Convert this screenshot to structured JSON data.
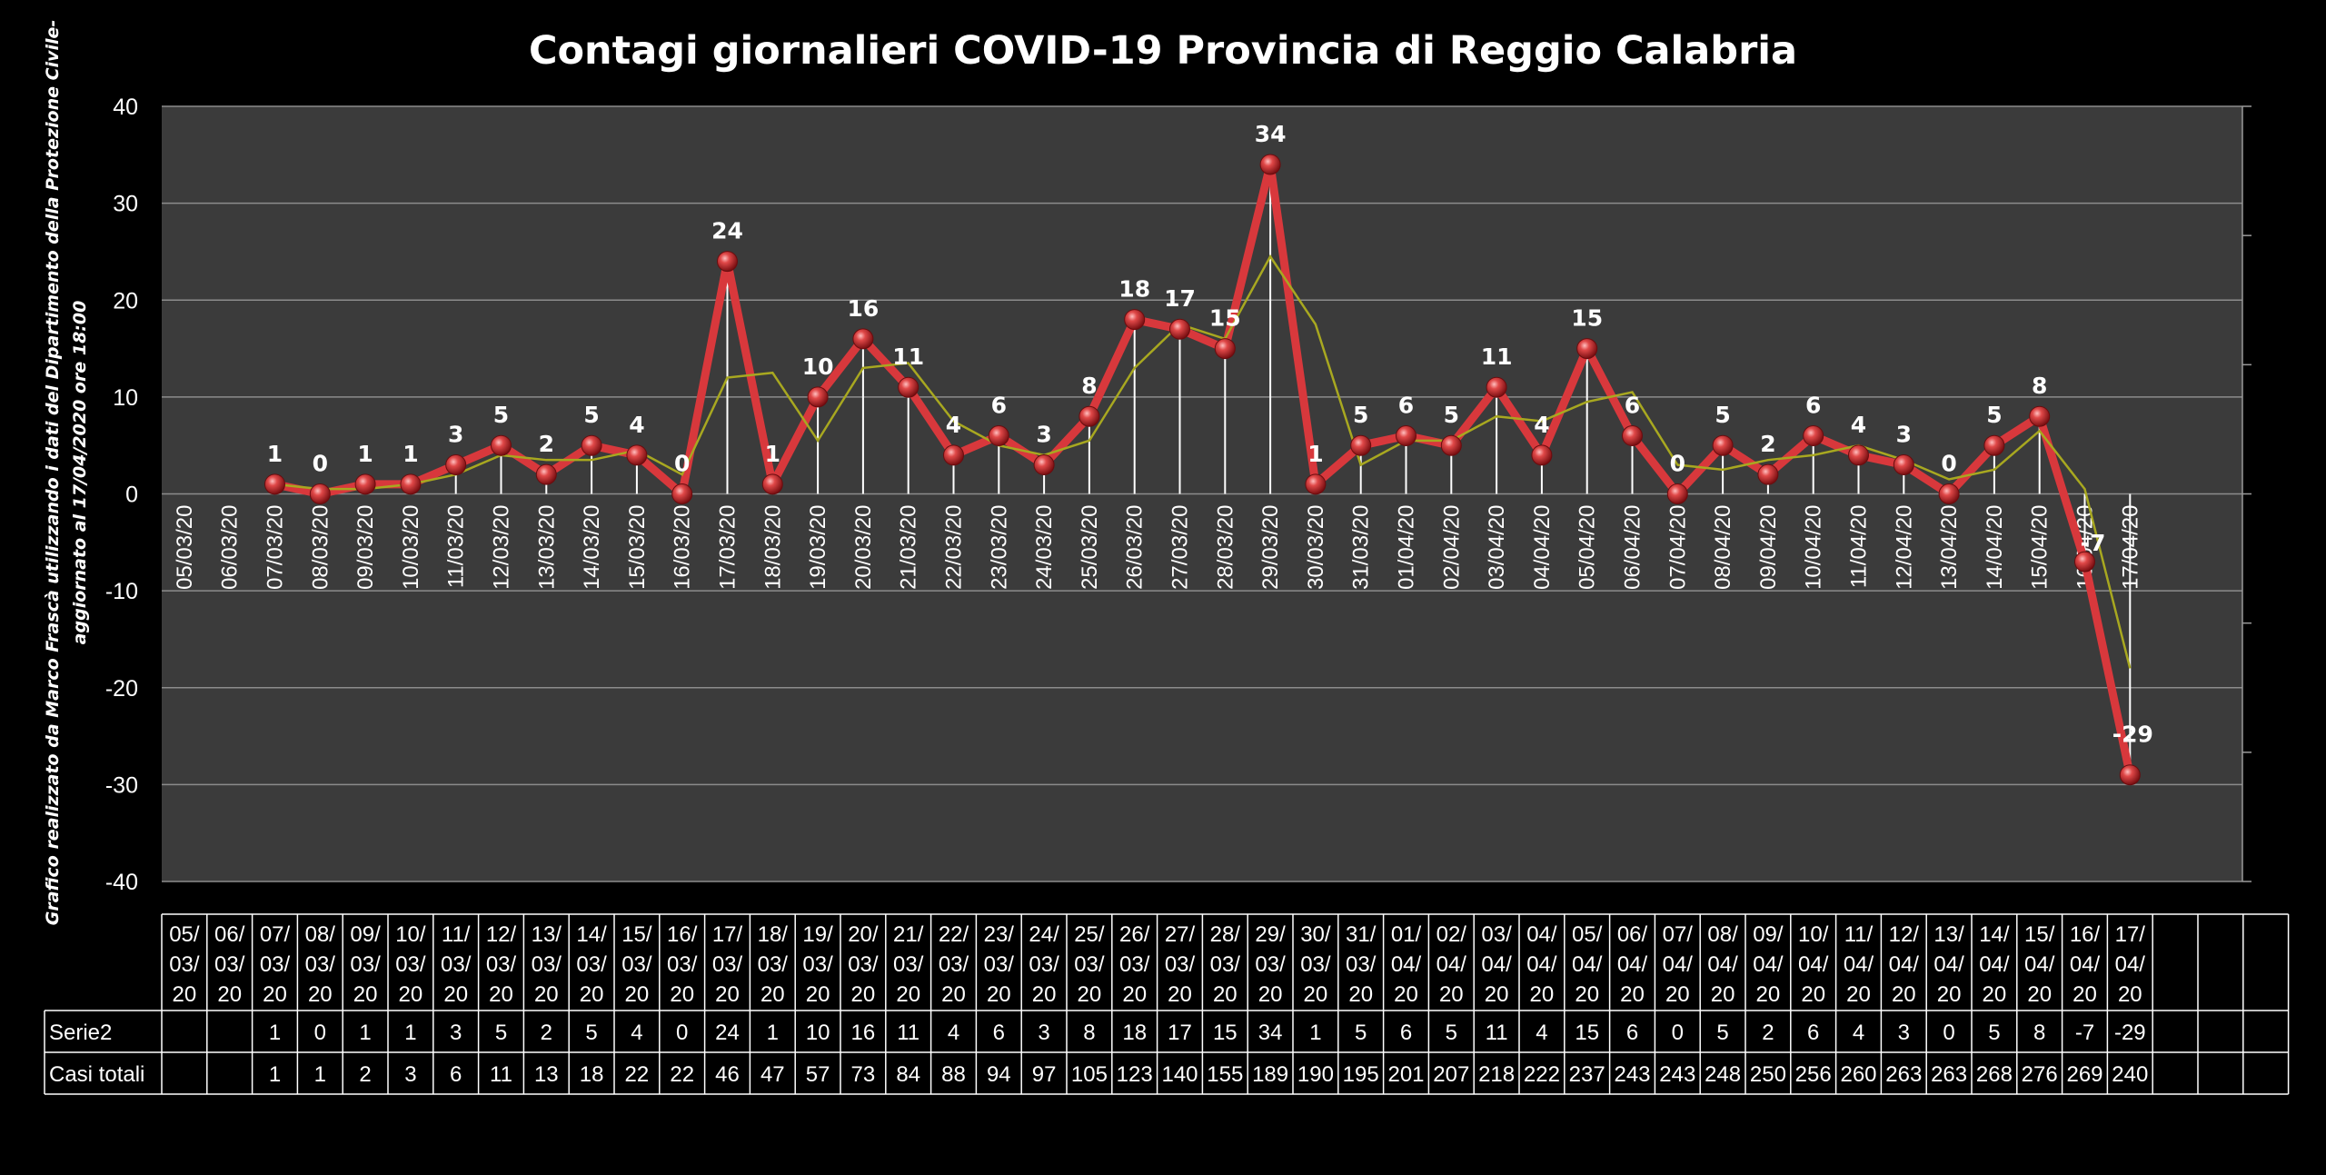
{
  "chart_data": {
    "type": "line",
    "title": "Contagi  giornalieri COVID-19 Provincia di Reggio Calabria",
    "side_note": [
      "Grafico  realizzato da Marco Frascà  utilizzando i dati del Dipartimento  della Protezione Civile-",
      "aggiornato al  17/04/2020 ore 18:00"
    ],
    "ylim": [
      -40,
      40
    ],
    "yticks": [
      -40,
      -30,
      -20,
      -10,
      0,
      10,
      20,
      30,
      40
    ],
    "grid": true,
    "categories": [
      "05/03/20",
      "06/03/20",
      "07/03/20",
      "08/03/20",
      "09/03/20",
      "10/03/20",
      "11/03/20",
      "12/03/20",
      "13/03/20",
      "14/03/20",
      "15/03/20",
      "16/03/20",
      "17/03/20",
      "18/03/20",
      "19/03/20",
      "20/03/20",
      "21/03/20",
      "22/03/20",
      "23/03/20",
      "24/03/20",
      "25/03/20",
      "26/03/20",
      "27/03/20",
      "28/03/20",
      "29/03/20",
      "30/03/20",
      "31/03/20",
      "01/04/20",
      "02/04/20",
      "03/04/20",
      "04/04/20",
      "05/04/20",
      "06/04/20",
      "07/04/20",
      "08/04/20",
      "09/04/20",
      "10/04/20",
      "11/04/20",
      "12/04/20",
      "13/04/20",
      "14/04/20",
      "15/04/20",
      "16/04/20",
      "17/04/20"
    ],
    "series": [
      {
        "name": "Serie2",
        "color": "#d8383c",
        "values": [
          null,
          null,
          1,
          0,
          1,
          1,
          3,
          5,
          2,
          5,
          4,
          0,
          24,
          1,
          10,
          16,
          11,
          4,
          6,
          3,
          8,
          18,
          17,
          15,
          34,
          1,
          5,
          6,
          5,
          11,
          4,
          15,
          6,
          0,
          5,
          2,
          6,
          4,
          3,
          0,
          5,
          8,
          -7,
          -29
        ],
        "labels": [
          "",
          "",
          "1",
          "0",
          "1",
          "1",
          "3",
          "5",
          "2",
          "5",
          "4",
          "0",
          "24",
          "1",
          "10",
          "16",
          "11",
          "4",
          "6",
          "3",
          "8",
          "18",
          "17",
          "15",
          "34",
          "1",
          "5",
          "6",
          "5",
          "11",
          "4",
          "15",
          "6",
          "0",
          "5",
          "2",
          "6",
          "4",
          "3",
          "0",
          "5",
          "8",
          "-7",
          "-29"
        ]
      },
      {
        "name": "trend",
        "color": "#a8a820",
        "values": [
          null,
          null,
          1,
          0.5,
          0.5,
          1,
          2,
          4,
          3.5,
          3.5,
          4.5,
          2,
          12,
          12.5,
          5.5,
          13,
          13.5,
          7.5,
          5,
          4,
          5.5,
          13,
          17.5,
          16,
          24.5,
          17.5,
          3,
          5.5,
          5.5,
          8,
          7.5,
          9.5,
          10.5,
          3,
          2.5,
          3.5,
          4,
          5,
          3.5,
          1.5,
          2.5,
          6.5,
          0.5,
          -18
        ]
      }
    ],
    "table": {
      "header_dates": [
        [
          "05/",
          "03/",
          "20"
        ],
        [
          "06/",
          "03/",
          "20"
        ],
        [
          "07/",
          "03/",
          "20"
        ],
        [
          "08/",
          "03/",
          "20"
        ],
        [
          "09/",
          "03/",
          "20"
        ],
        [
          "10/",
          "03/",
          "20"
        ],
        [
          "11/",
          "03/",
          "20"
        ],
        [
          "12/",
          "03/",
          "20"
        ],
        [
          "13/",
          "03/",
          "20"
        ],
        [
          "14/",
          "03/",
          "20"
        ],
        [
          "15/",
          "03/",
          "20"
        ],
        [
          "16/",
          "03/",
          "20"
        ],
        [
          "17/",
          "03/",
          "20"
        ],
        [
          "18/",
          "03/",
          "20"
        ],
        [
          "19/",
          "03/",
          "20"
        ],
        [
          "20/",
          "03/",
          "20"
        ],
        [
          "21/",
          "03/",
          "20"
        ],
        [
          "22/",
          "03/",
          "20"
        ],
        [
          "23/",
          "03/",
          "20"
        ],
        [
          "24/",
          "03/",
          "20"
        ],
        [
          "25/",
          "03/",
          "20"
        ],
        [
          "26/",
          "03/",
          "20"
        ],
        [
          "27/",
          "03/",
          "20"
        ],
        [
          "28/",
          "03/",
          "20"
        ],
        [
          "29/",
          "03/",
          "20"
        ],
        [
          "30/",
          "03/",
          "20"
        ],
        [
          "31/",
          "03/",
          "20"
        ],
        [
          "01/",
          "04/",
          "20"
        ],
        [
          "02/",
          "04/",
          "20"
        ],
        [
          "03/",
          "04/",
          "20"
        ],
        [
          "04/",
          "04/",
          "20"
        ],
        [
          "05/",
          "04/",
          "20"
        ],
        [
          "06/",
          "04/",
          "20"
        ],
        [
          "07/",
          "04/",
          "20"
        ],
        [
          "08/",
          "04/",
          "20"
        ],
        [
          "09/",
          "04/",
          "20"
        ],
        [
          "10/",
          "04/",
          "20"
        ],
        [
          "11/",
          "04/",
          "20"
        ],
        [
          "12/",
          "04/",
          "20"
        ],
        [
          "13/",
          "04/",
          "20"
        ],
        [
          "14/",
          "04/",
          "20"
        ],
        [
          "15/",
          "04/",
          "20"
        ],
        [
          "16/",
          "04/",
          "20"
        ],
        [
          "17/",
          "04/",
          "20"
        ],
        [
          "",
          "",
          ""
        ],
        [
          "",
          "",
          ""
        ],
        [
          "",
          "",
          ""
        ]
      ],
      "rows": [
        {
          "name": "Serie2",
          "values": [
            "",
            "",
            "1",
            "0",
            "1",
            "1",
            "3",
            "5",
            "2",
            "5",
            "4",
            "0",
            "24",
            "1",
            "10",
            "16",
            "11",
            "4",
            "6",
            "3",
            "8",
            "18",
            "17",
            "15",
            "34",
            "1",
            "5",
            "6",
            "5",
            "11",
            "4",
            "15",
            "6",
            "0",
            "5",
            "2",
            "6",
            "4",
            "3",
            "0",
            "5",
            "8",
            "-7",
            "-29",
            "",
            "",
            ""
          ]
        },
        {
          "name": "Casi totali",
          "values": [
            "",
            "",
            "1",
            "1",
            "2",
            "3",
            "6",
            "11",
            "13",
            "18",
            "22",
            "22",
            "46",
            "47",
            "57",
            "73",
            "84",
            "88",
            "94",
            "97",
            "105",
            "123",
            "140",
            "155",
            "189",
            "190",
            "195",
            "201",
            "207",
            "218",
            "222",
            "237",
            "243",
            "243",
            "248",
            "250",
            "256",
            "260",
            "263",
            "263",
            "268",
            "276",
            "269",
            "240",
            "",
            "",
            ""
          ]
        }
      ]
    },
    "colors": {
      "background": "#000000",
      "plot_area": "#3b3b3b",
      "gridline": "#8c8c8c",
      "text": "#ffffff"
    }
  }
}
